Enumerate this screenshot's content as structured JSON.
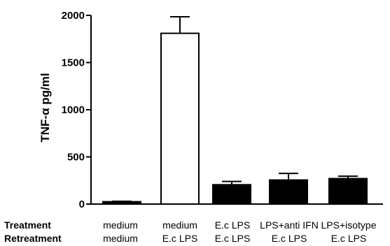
{
  "chart_data": {
    "type": "bar",
    "ylabel": "TNF-α pg/ml",
    "ylim": [
      0,
      2000
    ],
    "yticks": [
      0,
      500,
      1000,
      1500,
      2000
    ],
    "row_labels": [
      "Treatment",
      "Retreatment"
    ],
    "categories": [
      {
        "treatment": "medium",
        "retreatment": "medium"
      },
      {
        "treatment": "medium",
        "retreatment": "E.c LPS"
      },
      {
        "treatment": "E.c LPS",
        "retreatment": "E.c LPS"
      },
      {
        "treatment": "LPS+anti IFN",
        "retreatment": "E.c LPS"
      },
      {
        "treatment": "LPS+isotype",
        "retreatment": "E.c LPS"
      }
    ],
    "values": [
      25,
      1810,
      205,
      255,
      270
    ],
    "errors": [
      5,
      175,
      35,
      70,
      25
    ],
    "fills": [
      "#000000",
      "#ffffff",
      "#000000",
      "#000000",
      "#000000"
    ]
  }
}
